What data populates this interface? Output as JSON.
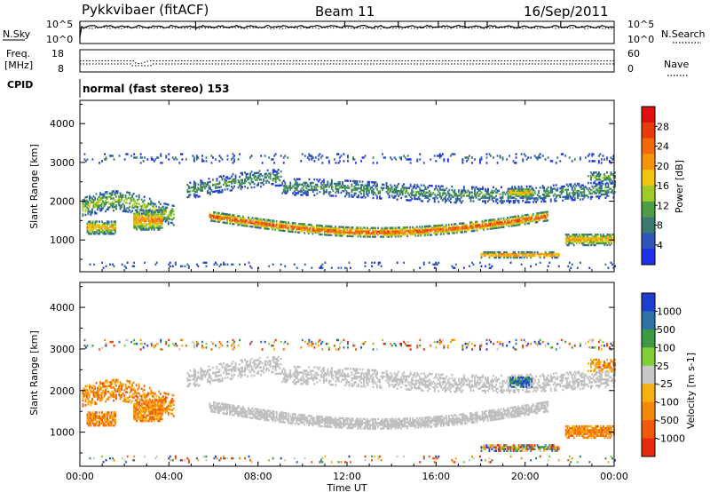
{
  "header": {
    "title": "Pykkvibaer (fitACF)",
    "beam": "Beam 11",
    "date": "16/Sep/2011"
  },
  "panels": {
    "nsky_label": "N.Sky",
    "nsky_ticks": [
      "10^5",
      "10^0"
    ],
    "nsky_right_ticks": [
      "10^5",
      "10^0"
    ],
    "nsearch_label": "N.Search",
    "freq_label_line1": "Freq.",
    "freq_label_line2": "[MHz]",
    "freq_ticks": [
      "18",
      "8"
    ],
    "nave_ticks": [
      "60",
      "0"
    ],
    "nave_label": "Nave",
    "cpid_label": "CPID",
    "cpid_text": "normal (fast stereo) 153"
  },
  "chart_data": [
    {
      "type": "heatmap",
      "title": "",
      "xlabel": "Time UT",
      "ylabel": "Slant Range [km]",
      "x_ticks": [
        "00:00",
        "04:00",
        "08:00",
        "12:00",
        "16:00",
        "20:00",
        "00:00"
      ],
      "x_range_hours": [
        0,
        24
      ],
      "y_ticks": [
        1000,
        2000,
        3000,
        4000
      ],
      "y_range_km": [
        180,
        4600
      ],
      "colorbar": {
        "label": "Power [dB]",
        "ticks": [
          "4",
          "8",
          "12",
          "16",
          "20",
          "24",
          "28"
        ],
        "colors": [
          "#1f2ee8",
          "#2f57b8",
          "#3a7a72",
          "#4f9d45",
          "#9fcc28",
          "#f2c40c",
          "#f7950a",
          "#f06a08",
          "#e83a0a",
          "#df1010"
        ]
      }
    },
    {
      "type": "heatmap",
      "title": "",
      "xlabel": "Time UT",
      "ylabel": "Slant Range [km]",
      "x_ticks": [
        "00:00",
        "04:00",
        "08:00",
        "12:00",
        "16:00",
        "20:00",
        "00:00"
      ],
      "x_range_hours": [
        0,
        24
      ],
      "y_ticks": [
        1000,
        2000,
        3000,
        4000
      ],
      "y_range_km": [
        180,
        4600
      ],
      "colorbar": {
        "label": "Velocity [m s-1]",
        "ticks": [
          "1000",
          "500",
          "100",
          "25",
          "-25",
          "-100",
          "-500",
          "-1000"
        ],
        "colors": [
          "#1d3fd0",
          "#2f72a8",
          "#3d9a42",
          "#7fcf36",
          "#c8c8c8",
          "#f7b00e",
          "#f58a0a",
          "#f05a0a",
          "#e82a0a"
        ]
      }
    }
  ],
  "colors": {
    "ground_scatter": "#c0c0c0",
    "axis": "#000000"
  }
}
